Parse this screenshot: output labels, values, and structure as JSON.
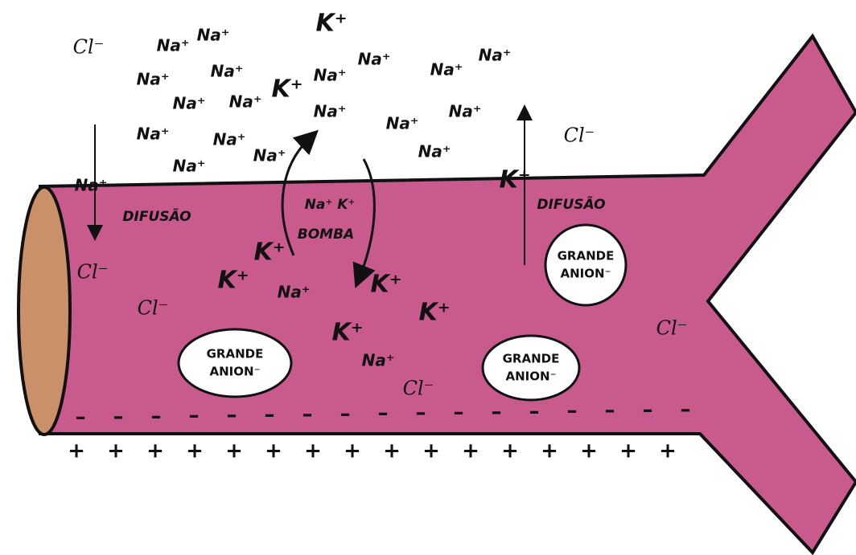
{
  "outside": [
    "Cl⁻",
    "Na⁺",
    "Na⁺",
    "K⁺",
    "Na⁺",
    "Na⁺",
    "Na⁺",
    "Na⁺",
    "K⁺",
    "Na⁺",
    "Na⁺",
    "Na⁺",
    "Na⁺",
    "Na⁺",
    "Na⁺",
    "Na⁺",
    "Na⁺",
    "Na⁺",
    "Na⁺",
    "Na⁺",
    "Na⁺",
    "Cl⁻"
  ],
  "membrane": [
    "Na⁺",
    "K⁺"
  ],
  "inside": [
    "Cl⁻",
    "Cl⁻",
    "K⁺",
    "K⁺",
    "Na⁺",
    "K⁺",
    "K⁺",
    "K⁺",
    "Na⁺",
    "Cl⁻",
    "Cl⁻"
  ],
  "labels": {
    "diffusion_na": "DIFUSÃO",
    "diffusion_k": "DIFUSÃO",
    "pump_ions": "Na⁺ K⁺",
    "pump": "BOMBA"
  },
  "anions": [
    [
      "GRANDE",
      "ANION⁻"
    ],
    [
      "GRANDE",
      "ANION⁻"
    ],
    [
      "GRANDE",
      "ANION⁻"
    ]
  ],
  "charges": {
    "inside": [
      "–",
      "–",
      "–",
      "–",
      "–",
      "–",
      "–",
      "–",
      "–",
      "–",
      "–",
      "–",
      "–",
      "–",
      "–",
      "–",
      "–"
    ],
    "outside": [
      "+",
      "+",
      "+",
      "+",
      "+",
      "+",
      "+",
      "+",
      "+",
      "+",
      "+",
      "+",
      "+",
      "+",
      "+",
      "+"
    ]
  }
}
